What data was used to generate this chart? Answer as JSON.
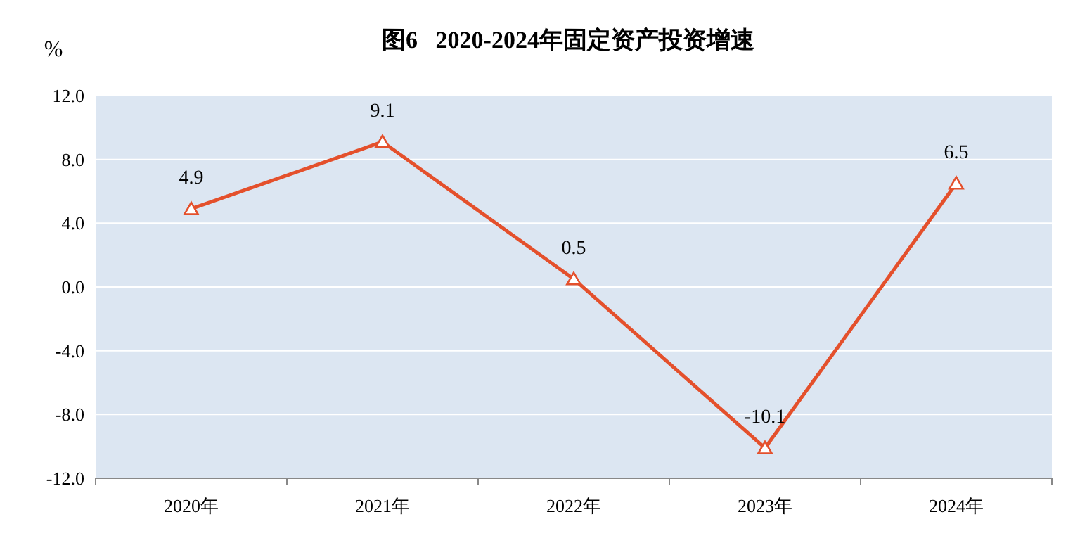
{
  "chart_data": {
    "type": "line",
    "title": "图6   2020-2024年固定资产投资增速",
    "ylabel": "%",
    "categories": [
      "2020年",
      "2021年",
      "2022年",
      "2023年",
      "2024年"
    ],
    "series": [
      {
        "color": "#e4502c",
        "values": [
          4.9,
          9.1,
          0.5,
          -10.1,
          6.5
        ]
      }
    ],
    "ylim": [
      -12,
      12
    ],
    "yticks": [
      {
        "value": -12,
        "label": "-12.0"
      },
      {
        "value": -8,
        "label": "-8.0"
      },
      {
        "value": -4,
        "label": "-4.0"
      },
      {
        "value": 0,
        "label": "0.0"
      },
      {
        "value": 4,
        "label": "4.0"
      },
      {
        "value": 8,
        "label": "8.0"
      },
      {
        "value": 12,
        "label": "12.0"
      }
    ],
    "grid": "y",
    "marker": "triangle",
    "line_style": "solid",
    "data_labels": true
  }
}
